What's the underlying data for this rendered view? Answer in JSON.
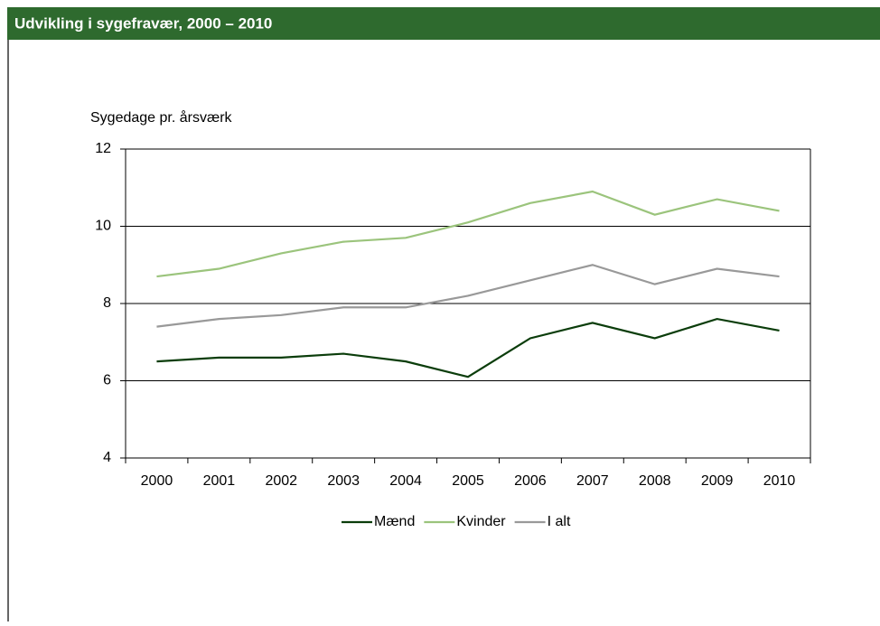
{
  "chart_data": {
    "type": "line",
    "title": "Udvikling i sygefravær, 2000 – 2010",
    "y_label": "Sygedage pr. årsværk",
    "categories": [
      "2000",
      "2001",
      "2002",
      "2003",
      "2004",
      "2005",
      "2006",
      "2007",
      "2008",
      "2009",
      "2010"
    ],
    "series": [
      {
        "name": "Mænd",
        "color": "#0b3d0b",
        "values": [
          6.5,
          6.6,
          6.6,
          6.7,
          6.5,
          6.1,
          7.1,
          7.5,
          7.1,
          7.6,
          7.3
        ]
      },
      {
        "name": "Kvinder",
        "color": "#9bc47c",
        "values": [
          8.7,
          8.9,
          9.3,
          9.6,
          9.7,
          10.1,
          10.6,
          10.9,
          10.3,
          10.7,
          10.4
        ]
      },
      {
        "name": "I alt",
        "color": "#999999",
        "values": [
          7.4,
          7.6,
          7.7,
          7.9,
          7.9,
          8.2,
          8.6,
          9.0,
          8.5,
          8.9,
          8.7
        ]
      }
    ],
    "ylim": [
      4,
      12
    ],
    "yticks": [
      4,
      6,
      8,
      10,
      12
    ],
    "grid": true,
    "legend": "bottom"
  }
}
